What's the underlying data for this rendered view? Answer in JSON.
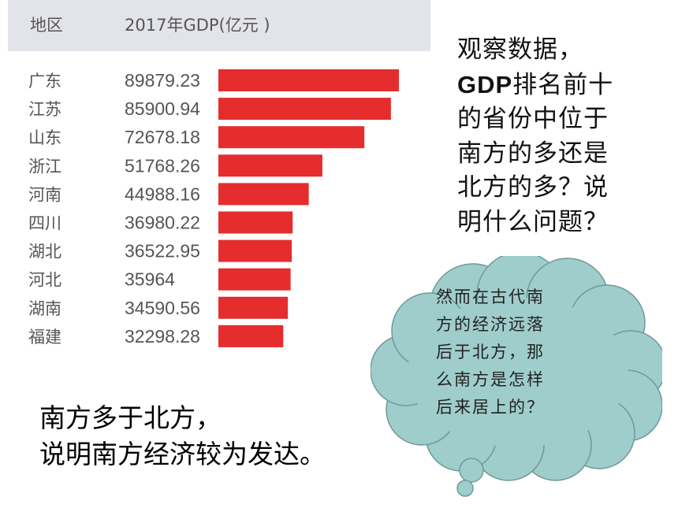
{
  "chart_data": {
    "type": "bar",
    "orientation": "horizontal",
    "header": {
      "region": "地区",
      "value": "2017年GDP(亿元 )"
    },
    "categories": [
      "广东",
      "江苏",
      "山东",
      "浙江",
      "河南",
      "四川",
      "湖北",
      "河北",
      "湖南",
      "福建"
    ],
    "values": [
      89879.23,
      85900.94,
      72678.18,
      51768.26,
      44988.16,
      36980.22,
      36522.95,
      35964,
      34590.56,
      32298.28
    ],
    "value_labels": [
      "89879.23",
      "85900.94",
      "72678.18",
      "51768.26",
      "44988.16",
      "36980.22",
      "36522.95",
      "35964",
      "34590.56",
      "32298.28"
    ],
    "bar_color": "#e52d2d"
  },
  "question": {
    "lines": [
      "观察数据，",
      "GDP排名前十",
      "的省份中位于",
      "南方的多还是",
      "北方的多？说",
      "明什么问题？"
    ],
    "bold_prefix": "GDP"
  },
  "cloud": {
    "lines": [
      "然而在古代南",
      "方的经济远落",
      "后于北方，那",
      "么南方是怎样",
      "后来居上的？"
    ],
    "fill": "#9fcdcc",
    "stroke": "#6e9a99"
  },
  "conclusion": {
    "lines": [
      "南方多于北方，",
      "说明南方经济较为发达。"
    ]
  }
}
